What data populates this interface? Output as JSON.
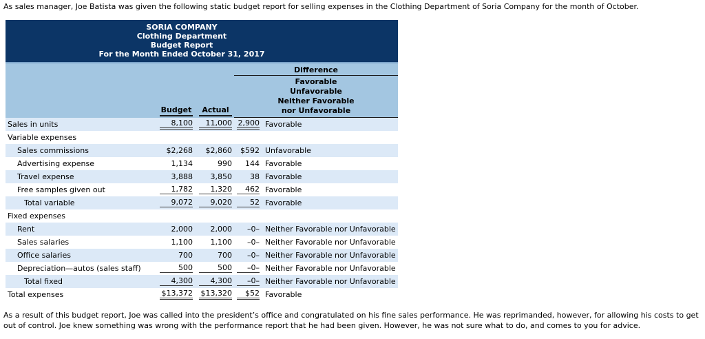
{
  "intro_text": "As sales manager, Joe Batista was given the following static budget report for selling expenses in the Clothing Department of Soria Company for the month of October.",
  "report": {
    "title_lines": [
      "SORIA COMPANY",
      "Clothing Department",
      "Budget Report",
      "For the Month Ended October 31, 2017"
    ],
    "columns": {
      "budget": "Budget",
      "actual": "Actual",
      "difference": "Difference",
      "difference_sub": [
        "Favorable",
        "Unfavorable",
        "Neither Favorable",
        "nor Unfavorable"
      ]
    },
    "rows": [
      {
        "label": "Sales in units",
        "indent": 0,
        "budget": "8,100",
        "actual": "11,000",
        "diff": "2,900",
        "diff_text": "Favorable",
        "underline": "double"
      },
      {
        "label": "Variable expenses",
        "indent": 0,
        "budget": "",
        "actual": "",
        "diff": "",
        "diff_text": "",
        "underline": "none"
      },
      {
        "label": "Sales commissions",
        "indent": 1,
        "budget": "$2,268",
        "actual": "$2,860",
        "diff": "$592",
        "diff_text": "Unfavorable",
        "underline": "none"
      },
      {
        "label": "Advertising expense",
        "indent": 1,
        "budget": "1,134",
        "actual": "990",
        "diff": "144",
        "diff_text": "Favorable",
        "underline": "none"
      },
      {
        "label": "Travel expense",
        "indent": 1,
        "budget": "3,888",
        "actual": "3,850",
        "diff": "38",
        "diff_text": "Favorable",
        "underline": "none"
      },
      {
        "label": "Free samples given out",
        "indent": 1,
        "budget": "1,782",
        "actual": "1,320",
        "diff": "462",
        "diff_text": "Favorable",
        "underline": "single"
      },
      {
        "label": "Total variable",
        "indent": 2,
        "budget": "9,072",
        "actual": "9,020",
        "diff": "52",
        "diff_text": "Favorable",
        "underline": "single"
      },
      {
        "label": "Fixed expenses",
        "indent": 0,
        "budget": "",
        "actual": "",
        "diff": "",
        "diff_text": "",
        "underline": "none"
      },
      {
        "label": "Rent",
        "indent": 1,
        "budget": "2,000",
        "actual": "2,000",
        "diff": "–0–",
        "diff_text": "Neither Favorable nor Unfavorable",
        "underline": "none"
      },
      {
        "label": "Sales salaries",
        "indent": 1,
        "budget": "1,100",
        "actual": "1,100",
        "diff": "–0–",
        "diff_text": "Neither Favorable nor Unfavorable",
        "underline": "none"
      },
      {
        "label": "Office salaries",
        "indent": 1,
        "budget": "700",
        "actual": "700",
        "diff": "–0–",
        "diff_text": "Neither Favorable nor Unfavorable",
        "underline": "none"
      },
      {
        "label": "Depreciation—autos (sales staff)",
        "indent": 1,
        "budget": "500",
        "actual": "500",
        "diff": "–0–",
        "diff_text": "Neither Favorable nor Unfavorable",
        "underline": "single"
      },
      {
        "label": "Total fixed",
        "indent": 2,
        "budget": "4,300",
        "actual": "4,300",
        "diff": "–0–",
        "diff_text": "Neither Favorable nor Unfavorable",
        "underline": "single"
      },
      {
        "label": "Total expenses",
        "indent": 0,
        "budget": "$13,372",
        "actual": "$13,320",
        "diff": "$52",
        "diff_text": "Favorable",
        "underline": "double"
      }
    ]
  },
  "outro_text": "As a result of this budget report, Joe was called into the president’s office and congratulated on his fine sales performance. He was reprimanded, however, for allowing his costs to get out of control. Joe knew something was wrong with the performance report that he had been given. However, he was not sure what to do, and comes to you for advice.",
  "colors": {
    "header_bg": "#0c3566",
    "band_bg": "#a3c6e1",
    "row_alt_bg": "#dce9f7",
    "header_text": "#ffffff"
  }
}
